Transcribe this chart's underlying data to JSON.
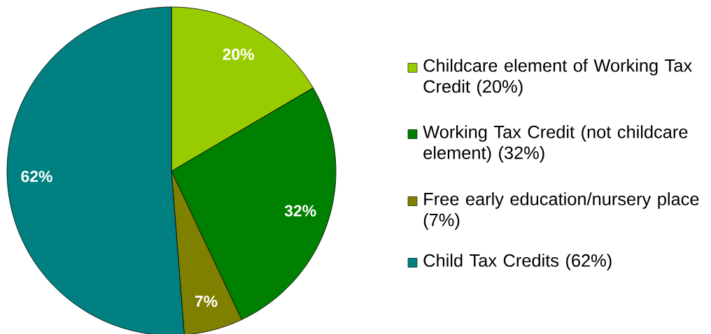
{
  "chart_data": {
    "type": "pie",
    "categories": [
      "Childcare element of Working Tax Credit (20%)",
      "Working Tax Credit (not childcare element) (32%)",
      "Free early education/nursery place (7%)",
      "Child Tax Credits (62%)"
    ],
    "values": [
      20,
      32,
      7,
      62
    ],
    "value_labels": [
      "20%",
      "32%",
      "7%",
      "62%"
    ],
    "colors": [
      "#99cc00",
      "#008000",
      "#808000",
      "#008080"
    ],
    "legend": "right"
  }
}
